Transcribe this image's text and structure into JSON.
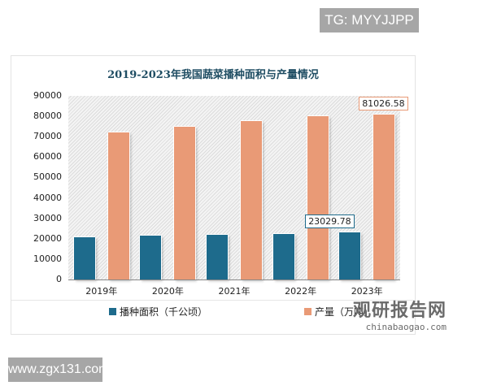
{
  "watermarks": {
    "top": "TG: MYYJJPP",
    "bottom": "www.zgx131.com"
  },
  "logo": {
    "cn": "观研报告网",
    "en": "chinabaogao.com"
  },
  "colors": {
    "area": "#1e6b8c",
    "output": "#e99a76"
  },
  "chart_data": {
    "type": "bar",
    "title": "2019-2023年我国蔬菜播种面积与产量情况",
    "categories": [
      "2019年",
      "2020年",
      "2021年",
      "2022年",
      "2023年"
    ],
    "series": [
      {
        "name": "播种面积（千公顷）",
        "values": [
          20863,
          21485,
          21986,
          22434,
          23029.78
        ]
      },
      {
        "name": "产量（万吨）",
        "values": [
          72103,
          74913,
          77549,
          79997,
          81026.58
        ]
      }
    ],
    "data_labels": {
      "area_2023": "23029.78",
      "output_2023": "81026.58"
    },
    "yticks": [
      "90000",
      "80000",
      "70000",
      "60000",
      "50000",
      "40000",
      "30000",
      "20000",
      "10000",
      "0"
    ],
    "ylim": [
      0,
      90000
    ],
    "xlabel": "",
    "ylabel": "",
    "legend_position": "bottom",
    "grid": false
  }
}
